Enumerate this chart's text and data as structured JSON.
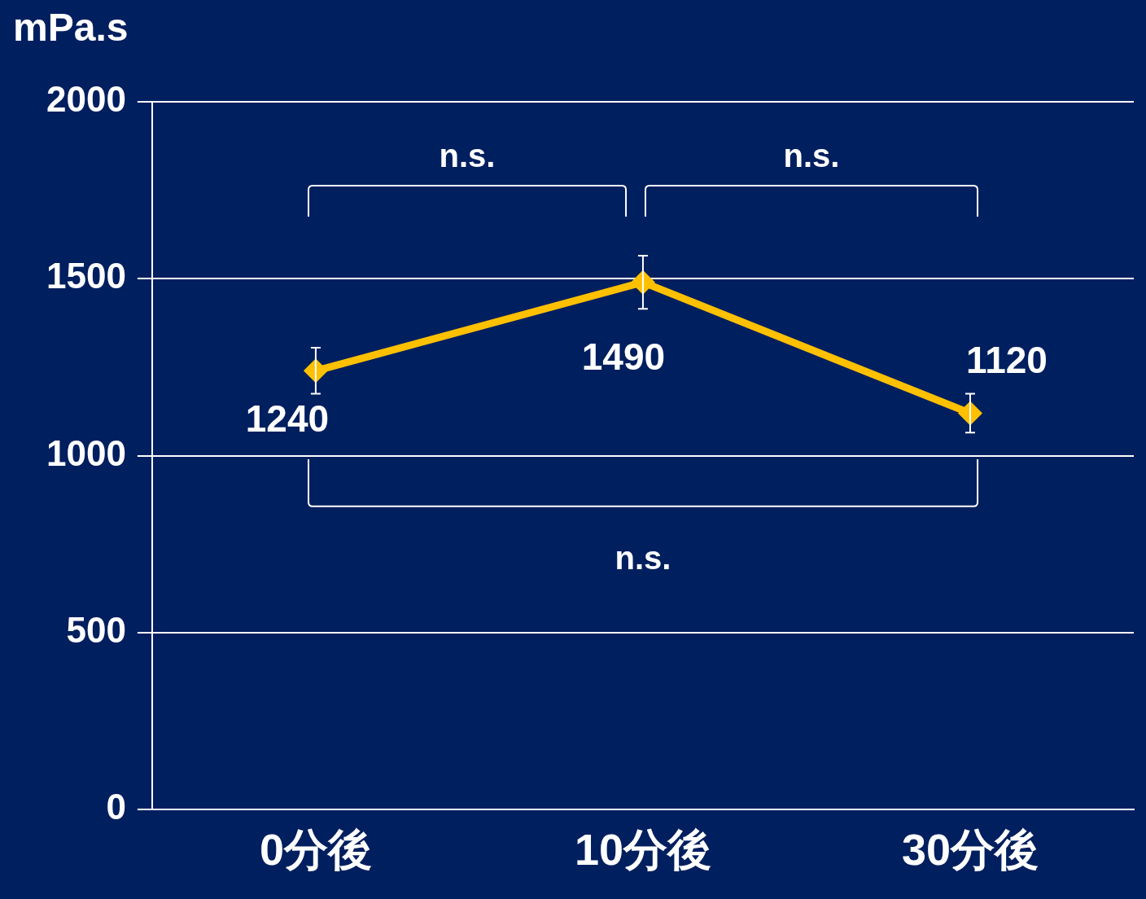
{
  "chart_data": {
    "type": "line",
    "ylabel": "mPa.s",
    "categories": [
      "0分後",
      "10分後",
      "30分後"
    ],
    "series": [
      {
        "color": "#ffc000",
        "values": [
          1240,
          1490,
          1120
        ],
        "errors": [
          65,
          75,
          55
        ]
      }
    ],
    "ylim": [
      0,
      2000
    ],
    "yticks": [
      0,
      500,
      1000,
      1500,
      2000
    ],
    "grid": "y",
    "marker": "diamond",
    "line_style": "solid",
    "data_labels": true,
    "annotations": [
      "n.s.",
      "n.s.",
      "n.s."
    ]
  }
}
